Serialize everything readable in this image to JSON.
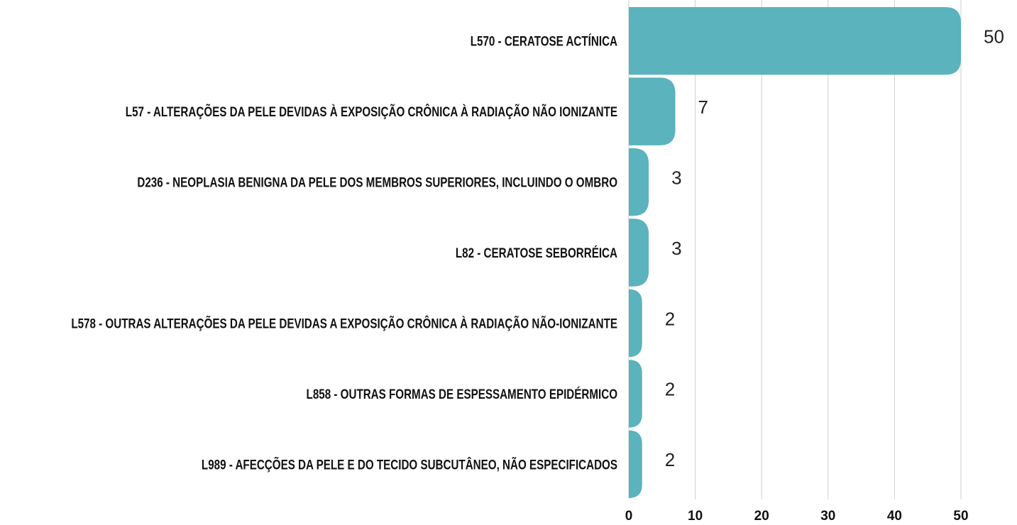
{
  "chart_data": {
    "type": "barh",
    "categories": [
      "L570 - CERATOSE ACTÍNICA",
      "L57 - ALTERAÇÕES DA PELE DEVIDAS À EXPOSIÇÃO CRÔNICA À RADIAÇÃO NÃO IONIZANTE",
      "D236 - NEOPLASIA BENIGNA DA PELE DOS MEMBROS SUPERIORES, INCLUINDO O OMBRO",
      "L82 - CERATOSE SEBORRÉICA",
      "L578 - OUTRAS ALTERAÇÕES DA PELE DEVIDAS A EXPOSIÇÃO CRÔNICA À RADIAÇÃO NÃO-IONIZANTE",
      "L858 - OUTRAS FORMAS DE ESPESSAMENTO EPIDÉRMICO",
      "L989 - AFECÇÕES DA PELE E DO TECIDO SUBCUTÂNEO, NÃO ESPECIFICADOS"
    ],
    "values": [
      50,
      7,
      3,
      3,
      2,
      2,
      2
    ],
    "color": "#5ab3bd",
    "xlim": [
      0,
      50
    ],
    "xticks": [
      0,
      10,
      20,
      30,
      40,
      50
    ],
    "grid": true
  }
}
